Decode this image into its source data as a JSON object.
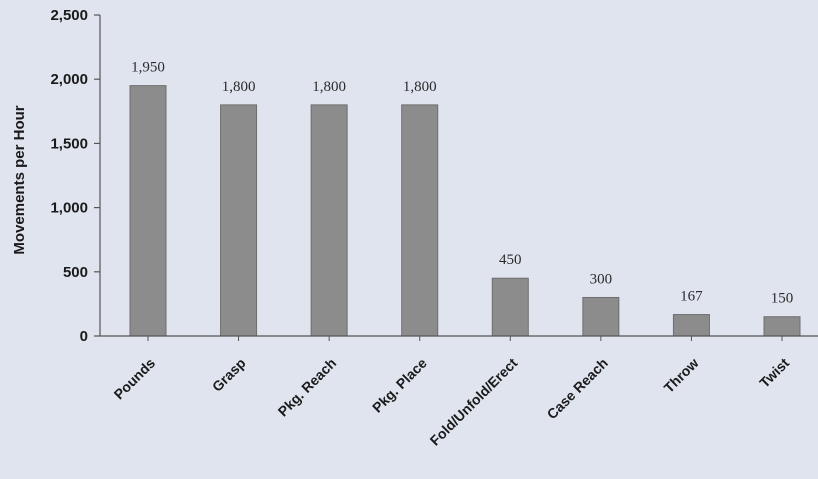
{
  "chart_data": {
    "type": "bar",
    "title": "",
    "xlabel": "",
    "ylabel": "Movements per Hour",
    "ylim": [
      0,
      2500
    ],
    "yticks": [
      0,
      500,
      1000,
      1500,
      2000,
      2500
    ],
    "ytick_labels": [
      "0",
      "500",
      "1,000",
      "1,500",
      "2,000",
      "2,500"
    ],
    "categories": [
      "Pounds",
      "Grasp",
      "Pkg. Reach",
      "Pkg. Place",
      "Fold/Unfold/Erect",
      "Case Reach",
      "Throw",
      "Twist"
    ],
    "values": [
      1950,
      1800,
      1800,
      1800,
      450,
      300,
      167,
      150
    ],
    "data_labels": [
      "1,950",
      "1,800",
      "1,800",
      "1,800",
      "450",
      "300",
      "167",
      "150"
    ],
    "grid": false,
    "legend": "none",
    "bar_color": "#8c8c8c",
    "bar_edge_color": "#6e6e6e",
    "axis_color": "#555555",
    "background_color": "#dfe4ef"
  }
}
